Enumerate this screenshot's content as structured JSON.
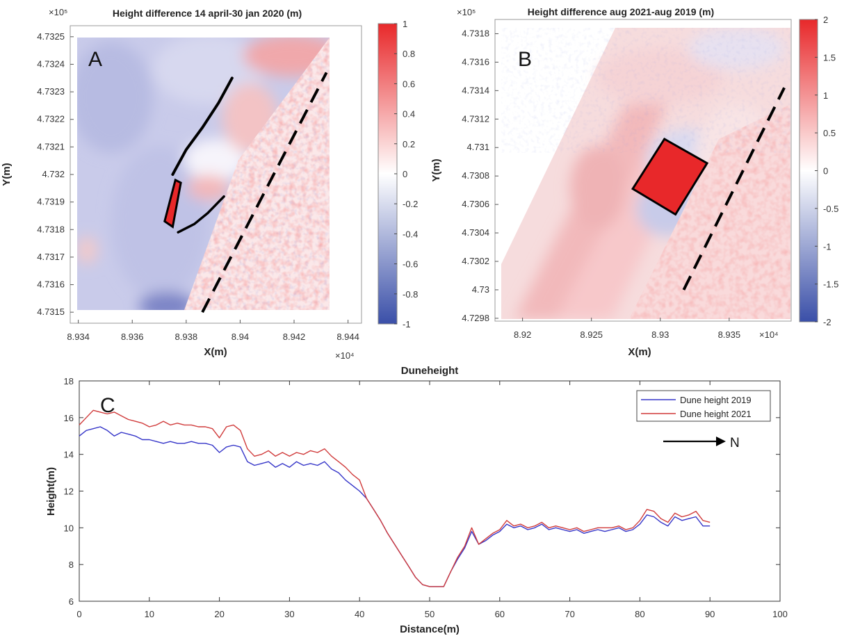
{
  "chart_data": [
    {
      "type": "heatmap",
      "panel_label": "A",
      "title": "Height difference 14 april-30 jan 2020 (m)",
      "xlabel": "X(m)",
      "ylabel": "Y(m)",
      "x_multiplier": "×10⁴",
      "y_multiplier": "×10⁵",
      "xlim": [
        8.9337,
        8.9445
      ],
      "ylim": [
        4.73146,
        4.73254
      ],
      "xticks": [
        8.934,
        8.936,
        8.938,
        8.94,
        8.942,
        8.944
      ],
      "xtick_labels": [
        "8.934",
        "8.936",
        "8.938",
        "8.94",
        "8.942",
        "8.944"
      ],
      "yticks": [
        4.7315,
        4.7316,
        4.7317,
        4.7318,
        4.7319,
        4.732,
        4.7321,
        4.7322,
        4.7323,
        4.7324,
        4.7325
      ],
      "ytick_labels": [
        "4.7315",
        "4.7316",
        "4.7317",
        "4.7318",
        "4.7319",
        "4.732",
        "4.7321",
        "4.7322",
        "4.7323",
        "4.7324",
        "4.7325"
      ],
      "colorbar": {
        "min": -1,
        "max": 1,
        "ticks": [
          1,
          0.8,
          0.6,
          0.4,
          0.2,
          0,
          -0.2,
          -0.4,
          -0.6,
          -0.8,
          -1
        ],
        "tick_labels": [
          "1",
          "0.8",
          "0.6",
          "0.4",
          "0.2",
          "0",
          "-0.2",
          "-0.4",
          "-0.6",
          "-0.8",
          "-1"
        ],
        "low_color": "#3a4fa8",
        "mid_color": "#ffffff",
        "high_color": "#e8282a"
      },
      "annotations": {
        "red_box": [
          [
            8.9372,
            4.73183
          ],
          [
            8.9375,
            4.73181
          ],
          [
            8.9378,
            4.73197
          ],
          [
            8.9376,
            4.73198
          ]
        ],
        "curve_upper": [
          [
            8.9375,
            4.732
          ],
          [
            8.938,
            4.73209
          ],
          [
            8.9386,
            4.73217
          ],
          [
            8.9392,
            4.73226
          ],
          [
            8.9397,
            4.73235
          ]
        ],
        "curve_lower": [
          [
            8.9377,
            4.73179
          ],
          [
            8.9383,
            4.73182
          ],
          [
            8.9388,
            4.73186
          ],
          [
            8.9394,
            4.73192
          ]
        ],
        "dashed_line": [
          [
            8.9386,
            4.7315
          ],
          [
            8.9432,
            4.73237
          ]
        ]
      }
    },
    {
      "type": "heatmap",
      "panel_label": "B",
      "title": "Height difference aug 2021-aug 2019 (m)",
      "xlabel": "X(m)",
      "ylabel": "Y(m)",
      "x_multiplier": "×10⁴",
      "y_multiplier": "×10⁵",
      "xlim": [
        8.918,
        8.9395
      ],
      "ylim": [
        4.72978,
        4.7319
      ],
      "xticks": [
        8.92,
        8.925,
        8.93,
        8.935
      ],
      "xtick_labels": [
        "8.92",
        "8.925",
        "8.93",
        "8.935"
      ],
      "yticks": [
        4.7298,
        4.73,
        4.7302,
        4.7304,
        4.7306,
        4.7308,
        4.731,
        4.7312,
        4.7314,
        4.7316,
        4.7318
      ],
      "ytick_labels": [
        "4.7298",
        "4.73",
        "4.7302",
        "4.7304",
        "4.7306",
        "4.7308",
        "4.731",
        "4.7312",
        "4.7314",
        "4.7316",
        "4.7318"
      ],
      "colorbar": {
        "min": -2,
        "max": 2,
        "ticks": [
          2,
          1.5,
          1,
          0.5,
          0,
          -0.5,
          -1,
          -1.5,
          -2
        ],
        "tick_labels": [
          "2",
          "1.5",
          "1",
          "0.5",
          "0",
          "-0.5",
          "-1",
          "-1.5",
          "-2"
        ],
        "low_color": "#3a4fa8",
        "mid_color": "#ffffff",
        "high_color": "#e8282a"
      },
      "annotations": {
        "red_box": [
          [
            8.928,
            4.73071
          ],
          [
            8.9303,
            4.73106
          ],
          [
            8.9334,
            4.73089
          ],
          [
            8.9311,
            4.73053
          ]
        ],
        "dashed_line": [
          [
            8.9317,
            4.73
          ],
          [
            8.939,
            4.73142
          ]
        ]
      }
    },
    {
      "type": "line",
      "panel_label": "C",
      "title": "Duneheight",
      "xlabel": "Distance(m)",
      "ylabel": "Height(m)",
      "xlim": [
        0,
        100
      ],
      "ylim": [
        6,
        18
      ],
      "xticks": [
        0,
        10,
        20,
        30,
        40,
        50,
        60,
        70,
        80,
        90,
        100
      ],
      "yticks": [
        6,
        8,
        10,
        12,
        14,
        16,
        18
      ],
      "grid": false,
      "legend_position": "top-right",
      "arrow_label": "N",
      "series": [
        {
          "name": "Dune height 2019",
          "color": "#3434c8",
          "x": [
            0,
            1,
            2,
            3,
            4,
            5,
            6,
            7,
            8,
            9,
            10,
            11,
            12,
            13,
            14,
            15,
            16,
            17,
            18,
            19,
            20,
            21,
            22,
            23,
            24,
            25,
            26,
            27,
            28,
            29,
            30,
            31,
            32,
            33,
            34,
            35,
            36,
            37,
            38,
            39,
            40,
            41,
            42,
            43,
            44,
            45,
            46,
            47,
            48,
            49,
            50,
            51,
            52,
            53,
            54,
            55,
            56,
            57,
            58,
            59,
            60,
            61,
            62,
            63,
            64,
            65,
            66,
            67,
            68,
            69,
            70,
            71,
            72,
            73,
            74,
            75,
            76,
            77,
            78,
            79,
            80,
            81,
            82,
            83,
            84,
            85,
            86,
            87,
            88,
            89,
            90
          ],
          "values": [
            15.0,
            15.3,
            15.4,
            15.5,
            15.3,
            15.0,
            15.2,
            15.1,
            15.0,
            14.8,
            14.8,
            14.7,
            14.6,
            14.7,
            14.6,
            14.6,
            14.7,
            14.6,
            14.6,
            14.5,
            14.1,
            14.4,
            14.5,
            14.4,
            13.6,
            13.4,
            13.5,
            13.6,
            13.3,
            13.5,
            13.3,
            13.6,
            13.4,
            13.5,
            13.4,
            13.6,
            13.2,
            13.0,
            12.6,
            12.3,
            12.0,
            11.6,
            11.0,
            10.4,
            9.7,
            9.1,
            8.5,
            7.9,
            7.3,
            6.9,
            6.8,
            6.8,
            6.8,
            7.6,
            8.3,
            8.9,
            9.8,
            9.1,
            9.3,
            9.6,
            9.8,
            10.2,
            10.0,
            10.1,
            9.9,
            10.0,
            10.2,
            9.9,
            10.0,
            9.9,
            9.8,
            9.9,
            9.7,
            9.8,
            9.9,
            9.8,
            9.9,
            10.0,
            9.8,
            9.9,
            10.2,
            10.7,
            10.6,
            10.3,
            10.1,
            10.6,
            10.4,
            10.5,
            10.6,
            10.1,
            10.1
          ]
        },
        {
          "name": "Dune height 2021",
          "color": "#d03a3a",
          "x": [
            0,
            1,
            2,
            3,
            4,
            5,
            6,
            7,
            8,
            9,
            10,
            11,
            12,
            13,
            14,
            15,
            16,
            17,
            18,
            19,
            20,
            21,
            22,
            23,
            24,
            25,
            26,
            27,
            28,
            29,
            30,
            31,
            32,
            33,
            34,
            35,
            36,
            37,
            38,
            39,
            40,
            41,
            42,
            43,
            44,
            45,
            46,
            47,
            48,
            49,
            50,
            51,
            52,
            53,
            54,
            55,
            56,
            57,
            58,
            59,
            60,
            61,
            62,
            63,
            64,
            65,
            66,
            67,
            68,
            69,
            70,
            71,
            72,
            73,
            74,
            75,
            76,
            77,
            78,
            79,
            80,
            81,
            82,
            83,
            84,
            85,
            86,
            87,
            88,
            89,
            90
          ],
          "values": [
            15.6,
            16.0,
            16.4,
            16.3,
            16.2,
            16.3,
            16.1,
            15.9,
            15.8,
            15.7,
            15.5,
            15.6,
            15.8,
            15.6,
            15.7,
            15.6,
            15.6,
            15.5,
            15.5,
            15.4,
            14.9,
            15.5,
            15.6,
            15.3,
            14.3,
            13.9,
            14.0,
            14.2,
            13.9,
            14.1,
            13.9,
            14.1,
            14.0,
            14.2,
            14.1,
            14.3,
            13.9,
            13.6,
            13.3,
            12.9,
            12.6,
            11.6,
            11.0,
            10.4,
            9.7,
            9.1,
            8.5,
            7.9,
            7.3,
            6.9,
            6.8,
            6.8,
            6.8,
            7.6,
            8.4,
            9.0,
            10.0,
            9.1,
            9.4,
            9.7,
            9.9,
            10.4,
            10.1,
            10.2,
            10.0,
            10.1,
            10.3,
            10.0,
            10.1,
            10.0,
            9.9,
            10.0,
            9.8,
            9.9,
            10.0,
            10.0,
            10.0,
            10.1,
            9.9,
            10.0,
            10.4,
            11.0,
            10.9,
            10.5,
            10.3,
            10.8,
            10.6,
            10.7,
            10.9,
            10.4,
            10.3
          ]
        }
      ]
    }
  ]
}
